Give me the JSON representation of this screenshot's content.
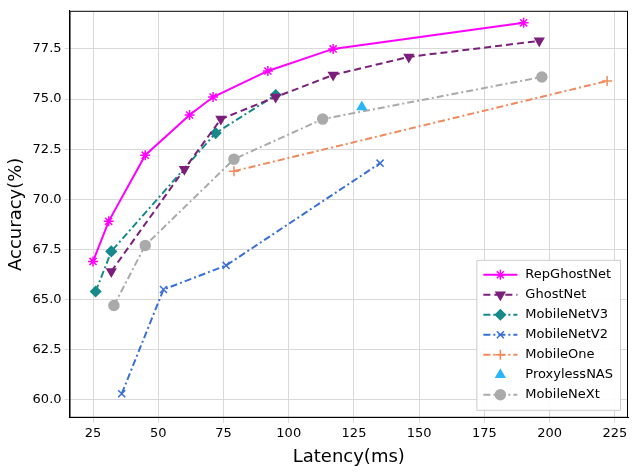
{
  "chart_data": {
    "type": "line",
    "x_label": "Latency(ms)",
    "y_label": "Accuracy(%)",
    "xlim": [
      16,
      230
    ],
    "ylim": [
      59.1,
      79.4
    ],
    "xticks": [
      25,
      50,
      75,
      100,
      125,
      150,
      175,
      200,
      225
    ],
    "yticks": [
      {
        "value": 60,
        "label": "60.0"
      },
      62.5,
      {
        "value": 65,
        "label": "65.0"
      },
      67.5,
      {
        "value": 70,
        "label": "70.0"
      },
      72.5,
      {
        "value": 75,
        "label": "75.0"
      },
      77.5
    ],
    "grid": true,
    "legend": "lower right",
    "series": [
      {
        "name": "RepGhostNet",
        "color": "#ff00ff",
        "marker": "star",
        "line_style": "solid",
        "x": [
          25,
          31,
          45,
          62,
          71,
          92,
          117,
          190
        ],
        "values": [
          66.9,
          68.9,
          72.2,
          74.2,
          75.1,
          76.4,
          77.5,
          78.8
        ]
      },
      {
        "name": "GhostNet",
        "color": "#7b1f7b",
        "marker": "triangle_down",
        "line_style": "dashed",
        "x": [
          32,
          60,
          74,
          95,
          117,
          146,
          196
        ],
        "values": [
          66.4,
          71.5,
          74.0,
          75.1,
          76.2,
          77.1,
          77.9
        ]
      },
      {
        "name": "MobileNetV3",
        "color": "#168a8a",
        "marker": "pentagon",
        "line_style": "dashdot",
        "x": [
          26,
          32,
          72,
          95
        ],
        "values": [
          65.4,
          67.4,
          73.3,
          75.2
        ]
      },
      {
        "name": "MobileNetV2",
        "color": "#3a6fd8",
        "marker": "tri",
        "line_style": "dashdot",
        "x": [
          36,
          52,
          76,
          135
        ],
        "values": [
          60.3,
          65.5,
          66.7,
          71.8
        ]
      },
      {
        "name": "MobileOne",
        "color": "#f08a5d",
        "marker": "tri_down",
        "line_style": "dashdot",
        "x": [
          79,
          222
        ],
        "values": [
          71.4,
          75.9
        ]
      },
      {
        "name": "ProxylessNAS",
        "color": "#29b6f6",
        "marker": "triangle",
        "line_style": "solid",
        "x": [
          128
        ],
        "values": [
          74.6
        ]
      },
      {
        "name": "MobileNeXt",
        "color": "#aaaaaa",
        "marker": "circle",
        "line_style": "dashdot",
        "x": [
          33,
          45,
          79,
          113,
          197
        ],
        "values": [
          64.7,
          67.7,
          72.0,
          74.0,
          76.1
        ]
      }
    ]
  }
}
